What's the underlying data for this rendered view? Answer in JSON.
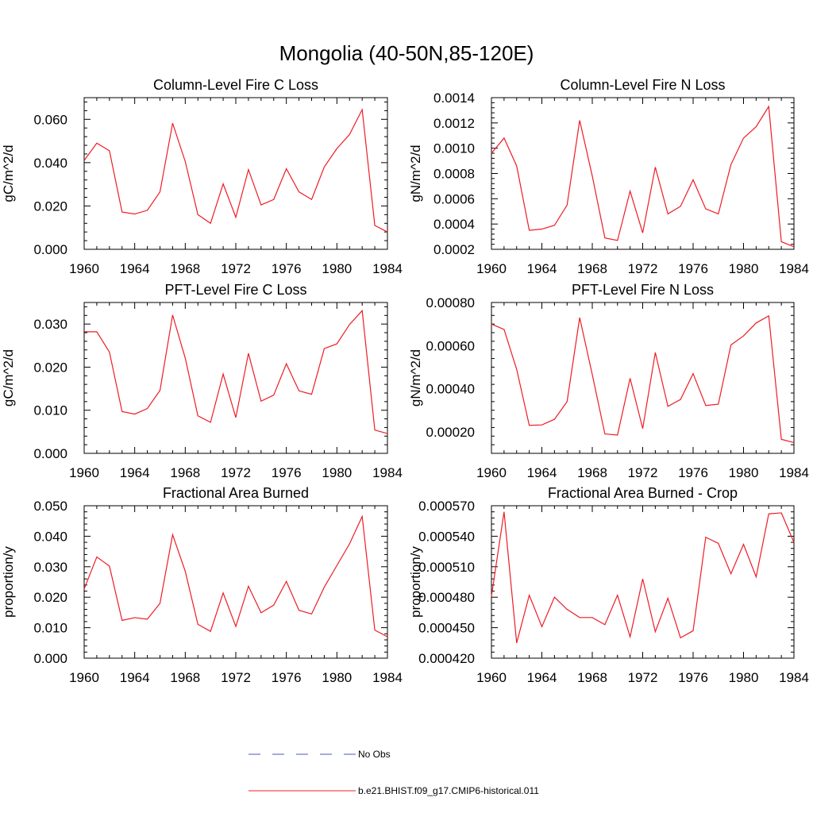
{
  "figure": {
    "title": "Mongolia (40-50N,85-120E)"
  },
  "legend": {
    "entries": [
      {
        "label": "No Obs",
        "color": "#4a5ab8",
        "dash": true
      },
      {
        "label": "b.e21.BHIST.f09_g17.CMIP6-historical.011",
        "color": "#e8212b",
        "dash": false
      }
    ]
  },
  "colors": {
    "series": "#ee1c25",
    "axis": "#000000"
  },
  "chart_data": [
    {
      "type": "line",
      "title": "Column-Level Fire C Loss",
      "ylabel": "gC/m^2/d",
      "xlim": [
        1960,
        1984
      ],
      "ylim": [
        0.0,
        0.07
      ],
      "xticks": [
        "1960",
        "1964",
        "1968",
        "1972",
        "1976",
        "1980",
        "1984"
      ],
      "yticks": [
        "0.000",
        "0.020",
        "0.040",
        "0.060"
      ],
      "x": [
        1960,
        1961,
        1962,
        1963,
        1964,
        1965,
        1966,
        1967,
        1968,
        1969,
        1970,
        1971,
        1972,
        1973,
        1974,
        1975,
        1976,
        1977,
        1978,
        1979,
        1980,
        1981,
        1982,
        1983,
        1984
      ],
      "series": [
        {
          "values": [
            0.041,
            0.049,
            0.0455,
            0.0172,
            0.0163,
            0.018,
            0.0265,
            0.0582,
            0.0405,
            0.016,
            0.012,
            0.0302,
            0.0148,
            0.0368,
            0.0205,
            0.023,
            0.0372,
            0.0265,
            0.023,
            0.038,
            0.0465,
            0.053,
            0.0645,
            0.011,
            0.008
          ]
        }
      ]
    },
    {
      "type": "line",
      "title": "Column-Level Fire N Loss",
      "ylabel": "gN/m^2/d",
      "xlim": [
        1960,
        1984
      ],
      "ylim": [
        0.0002,
        0.0014
      ],
      "xticks": [
        "1960",
        "1964",
        "1968",
        "1972",
        "1976",
        "1980",
        "1984"
      ],
      "yticks": [
        "0.0002",
        "0.0004",
        "0.0006",
        "0.0008",
        "0.0010",
        "0.0012",
        "0.0014"
      ],
      "x": [
        1960,
        1961,
        1962,
        1963,
        1964,
        1965,
        1966,
        1967,
        1968,
        1969,
        1970,
        1971,
        1972,
        1973,
        1974,
        1975,
        1976,
        1977,
        1978,
        1979,
        1980,
        1981,
        1982,
        1983,
        1984
      ],
      "series": [
        {
          "values": [
            0.00096,
            0.00108,
            0.00086,
            0.00035,
            0.00036,
            0.00039,
            0.00055,
            0.00122,
            0.00078,
            0.00029,
            0.00027,
            0.00066,
            0.00033,
            0.00085,
            0.00048,
            0.00054,
            0.00075,
            0.00052,
            0.00048,
            0.00087,
            0.00108,
            0.00117,
            0.00133,
            0.00026,
            0.00022
          ]
        }
      ]
    },
    {
      "type": "line",
      "title": "PFT-Level Fire C Loss",
      "ylabel": "gC/m^2/d",
      "xlim": [
        1960,
        1984
      ],
      "ylim": [
        0.0,
        0.035
      ],
      "xticks": [
        "1960",
        "1964",
        "1968",
        "1972",
        "1976",
        "1980",
        "1984"
      ],
      "yticks": [
        "0.000",
        "0.010",
        "0.020",
        "0.030"
      ],
      "x": [
        1960,
        1961,
        1962,
        1963,
        1964,
        1965,
        1966,
        1967,
        1968,
        1969,
        1970,
        1971,
        1972,
        1973,
        1974,
        1975,
        1976,
        1977,
        1978,
        1979,
        1980,
        1981,
        1982,
        1983,
        1984
      ],
      "series": [
        {
          "values": [
            0.0282,
            0.0282,
            0.0235,
            0.0097,
            0.0091,
            0.0104,
            0.0146,
            0.0321,
            0.0221,
            0.0087,
            0.0072,
            0.0184,
            0.0083,
            0.0232,
            0.0121,
            0.0135,
            0.0208,
            0.0145,
            0.0137,
            0.0243,
            0.0254,
            0.0299,
            0.0331,
            0.0054,
            0.0046
          ]
        }
      ]
    },
    {
      "type": "line",
      "title": "PFT-Level Fire N Loss",
      "ylabel": "gN/m^2/d",
      "xlim": [
        1960,
        1984
      ],
      "ylim": [
        0.0001,
        0.0008
      ],
      "xticks": [
        "1960",
        "1964",
        "1968",
        "1972",
        "1976",
        "1980",
        "1984"
      ],
      "yticks": [
        "0.00020",
        "0.00040",
        "0.00060",
        "0.00080"
      ],
      "x": [
        1960,
        1961,
        1962,
        1963,
        1964,
        1965,
        1966,
        1967,
        1968,
        1969,
        1970,
        1971,
        1972,
        1973,
        1974,
        1975,
        1976,
        1977,
        1978,
        1979,
        1980,
        1981,
        1982,
        1983,
        1984
      ],
      "series": [
        {
          "values": [
            0.0007,
            0.000675,
            0.00049,
            0.00023,
            0.000232,
            0.000258,
            0.00034,
            0.00073,
            0.000465,
            0.00019,
            0.000185,
            0.000448,
            0.000215,
            0.000568,
            0.000318,
            0.00035,
            0.00047,
            0.000322,
            0.000328,
            0.000603,
            0.000645,
            0.000705,
            0.000738,
            0.000165,
            0.00015
          ]
        }
      ]
    },
    {
      "type": "line",
      "title": "Fractional Area Burned",
      "ylabel": "proportion/y",
      "xlim": [
        1960,
        1984
      ],
      "ylim": [
        0.0,
        0.05
      ],
      "xticks": [
        "1960",
        "1964",
        "1968",
        "1972",
        "1976",
        "1980",
        "1984"
      ],
      "yticks": [
        "0.000",
        "0.010",
        "0.020",
        "0.030",
        "0.040",
        "0.050"
      ],
      "x": [
        1960,
        1961,
        1962,
        1963,
        1964,
        1965,
        1966,
        1967,
        1968,
        1969,
        1970,
        1971,
        1972,
        1973,
        1974,
        1975,
        1976,
        1977,
        1978,
        1979,
        1980,
        1981,
        1982,
        1983,
        1984
      ],
      "series": [
        {
          "values": [
            0.0227,
            0.0332,
            0.0302,
            0.0124,
            0.0133,
            0.0128,
            0.018,
            0.0405,
            0.0285,
            0.0111,
            0.0088,
            0.0214,
            0.0104,
            0.0236,
            0.0149,
            0.0174,
            0.0252,
            0.0157,
            0.0145,
            0.0233,
            0.0304,
            0.0375,
            0.0465,
            0.0092,
            0.007
          ]
        }
      ]
    },
    {
      "type": "line",
      "title": "Fractional Area Burned - Crop",
      "ylabel": "proportion/y",
      "xlim": [
        1960,
        1984
      ],
      "ylim": [
        0.00042,
        0.00057
      ],
      "xticks": [
        "1960",
        "1964",
        "1968",
        "1972",
        "1976",
        "1980",
        "1984"
      ],
      "yticks": [
        "0.000420",
        "0.000450",
        "0.000480",
        "0.000510",
        "0.000540",
        "0.000570"
      ],
      "x": [
        1960,
        1961,
        1962,
        1963,
        1964,
        1965,
        1966,
        1967,
        1968,
        1969,
        1970,
        1971,
        1972,
        1973,
        1974,
        1975,
        1976,
        1977,
        1978,
        1979,
        1980,
        1981,
        1982,
        1983,
        1984
      ],
      "series": [
        {
          "values": [
            0.000481,
            0.000564,
            0.000435,
            0.000482,
            0.000451,
            0.00048,
            0.000468,
            0.00046,
            0.00046,
            0.000453,
            0.000482,
            0.000441,
            0.000498,
            0.000446,
            0.000479,
            0.00044,
            0.000447,
            0.000539,
            0.000533,
            0.000503,
            0.000532,
            0.0005,
            0.000562,
            0.000563,
            0.000534
          ]
        }
      ]
    }
  ]
}
